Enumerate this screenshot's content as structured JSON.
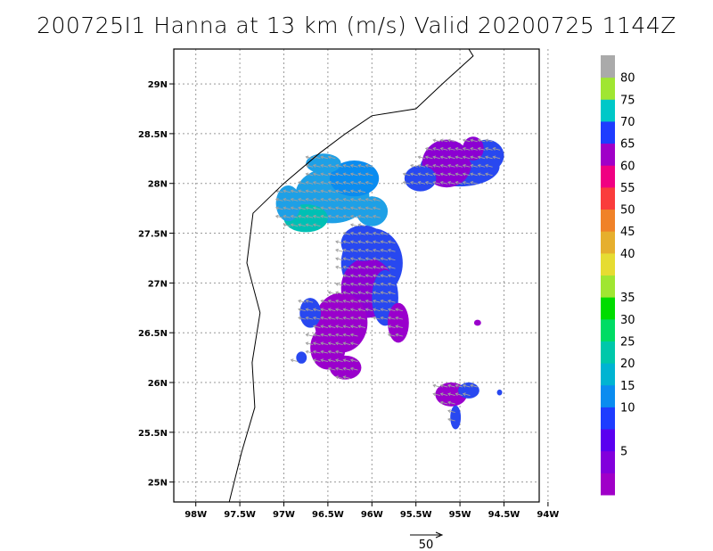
{
  "title": "200725I1 Hanna at 13 km (m/s) Valid 20200725 1144Z",
  "map": {
    "lon_range": [
      -98.25,
      -94.1
    ],
    "lat_range": [
      24.8,
      29.35
    ],
    "x_ticks": [
      {
        "lon": -98.0,
        "label": "98W"
      },
      {
        "lon": -97.5,
        "label": "97.5W"
      },
      {
        "lon": -97.0,
        "label": "97W"
      },
      {
        "lon": -96.5,
        "label": "96.5W"
      },
      {
        "lon": -96.0,
        "label": "96W"
      },
      {
        "lon": -95.5,
        "label": "95.5W"
      },
      {
        "lon": -95.0,
        "label": "95W"
      },
      {
        "lon": -94.5,
        "label": "94.5W"
      },
      {
        "lon": -94.0,
        "label": "94W"
      }
    ],
    "y_ticks": [
      {
        "lat": 29.0,
        "label": "29N"
      },
      {
        "lat": 28.5,
        "label": "28.5N"
      },
      {
        "lat": 28.0,
        "label": "28N"
      },
      {
        "lat": 27.5,
        "label": "27.5N"
      },
      {
        "lat": 27.0,
        "label": "27N"
      },
      {
        "lat": 26.5,
        "label": "26.5N"
      },
      {
        "lat": 26.0,
        "label": "26N"
      },
      {
        "lat": 25.5,
        "label": "25.5N"
      },
      {
        "lat": 25.0,
        "label": "25N"
      }
    ],
    "grid": true,
    "coastline": [
      [
        -97.62,
        24.8
      ],
      [
        -97.48,
        25.3
      ],
      [
        -97.33,
        25.75
      ],
      [
        -97.36,
        26.2
      ],
      [
        -97.27,
        26.7
      ],
      [
        -97.42,
        27.2
      ],
      [
        -97.35,
        27.7
      ],
      [
        -97.0,
        28.0
      ],
      [
        -96.6,
        28.3
      ],
      [
        -96.3,
        28.5
      ],
      [
        -96.0,
        28.68
      ],
      [
        -95.5,
        28.75
      ],
      [
        -95.2,
        29.0
      ],
      [
        -94.85,
        29.28
      ],
      [
        -94.9,
        29.35
      ]
    ]
  },
  "reference_vector": {
    "label": "50",
    "speed": 50
  },
  "colorbar": {
    "levels": [
      {
        "color": "#a000c8",
        "label": ""
      },
      {
        "color": "#8200dc",
        "label": "5"
      },
      {
        "color": "#5a00f0",
        "label": ""
      },
      {
        "color": "#1e3cff",
        "label": "10"
      },
      {
        "color": "#0a8cf0",
        "label": "15"
      },
      {
        "color": "#00b4d2",
        "label": "20"
      },
      {
        "color": "#00c8aa",
        "label": "25"
      },
      {
        "color": "#00dc64",
        "label": "30"
      },
      {
        "color": "#00dc00",
        "label": "35"
      },
      {
        "color": "#a0e632",
        "label": ""
      },
      {
        "color": "#e6dc32",
        "label": "40"
      },
      {
        "color": "#e6af2d",
        "label": "45"
      },
      {
        "color": "#f08228",
        "label": "50"
      },
      {
        "color": "#fa3c3c",
        "label": "55"
      },
      {
        "color": "#f00082",
        "label": "60"
      },
      {
        "color": "#a000c8",
        "label": "65"
      },
      {
        "color": "#1e3cff",
        "label": "70"
      },
      {
        "color": "#00c8c8",
        "label": "75"
      },
      {
        "color": "#a0e632",
        "label": "80"
      },
      {
        "color": "#aaaaaa",
        "label": ""
      }
    ]
  },
  "wind_regions": [
    {
      "lon": -96.45,
      "lat": 27.88,
      "rx": 0.42,
      "ry": 0.28,
      "color": "#1ea0e6"
    },
    {
      "lon": -96.75,
      "lat": 27.65,
      "rx": 0.25,
      "ry": 0.14,
      "color": "#00c0b4"
    },
    {
      "lon": -96.2,
      "lat": 28.05,
      "rx": 0.28,
      "ry": 0.18,
      "color": "#0a8cf0"
    },
    {
      "lon": -96.55,
      "lat": 28.2,
      "rx": 0.2,
      "ry": 0.1,
      "color": "#1ea0e6"
    },
    {
      "lon": -96.0,
      "lat": 27.72,
      "rx": 0.18,
      "ry": 0.15,
      "color": "#1ea0e6"
    },
    {
      "lon": -96.95,
      "lat": 27.8,
      "rx": 0.14,
      "ry": 0.18,
      "color": "#1ea0e6"
    },
    {
      "lon": -95.0,
      "lat": 28.17,
      "rx": 0.45,
      "ry": 0.2,
      "color": "#2848f0"
    },
    {
      "lon": -95.15,
      "lat": 28.2,
      "rx": 0.28,
      "ry": 0.24,
      "color": "#8c00d2"
    },
    {
      "lon": -94.7,
      "lat": 28.28,
      "rx": 0.2,
      "ry": 0.16,
      "color": "#2848f0"
    },
    {
      "lon": -95.45,
      "lat": 28.05,
      "rx": 0.18,
      "ry": 0.13,
      "color": "#2848f0"
    },
    {
      "lon": -94.85,
      "lat": 28.35,
      "rx": 0.12,
      "ry": 0.12,
      "color": "#8c00d2"
    },
    {
      "lon": -96.0,
      "lat": 27.2,
      "rx": 0.35,
      "ry": 0.35,
      "color": "#2848f0"
    },
    {
      "lon": -96.05,
      "lat": 26.95,
      "rx": 0.3,
      "ry": 0.3,
      "color": "#8c00d2"
    },
    {
      "lon": -95.85,
      "lat": 26.85,
      "rx": 0.15,
      "ry": 0.28,
      "color": "#2848f0"
    },
    {
      "lon": -96.1,
      "lat": 27.4,
      "rx": 0.25,
      "ry": 0.18,
      "color": "#2848f0"
    },
    {
      "lon": -96.35,
      "lat": 26.6,
      "rx": 0.3,
      "ry": 0.3,
      "color": "#9a00cc"
    },
    {
      "lon": -96.5,
      "lat": 26.35,
      "rx": 0.2,
      "ry": 0.22,
      "color": "#9a00cc"
    },
    {
      "lon": -96.7,
      "lat": 26.7,
      "rx": 0.12,
      "ry": 0.15,
      "color": "#2848f0"
    },
    {
      "lon": -96.3,
      "lat": 26.15,
      "rx": 0.18,
      "ry": 0.12,
      "color": "#9a00cc"
    },
    {
      "lon": -95.7,
      "lat": 26.6,
      "rx": 0.12,
      "ry": 0.2,
      "color": "#9a00cc"
    },
    {
      "lon": -95.1,
      "lat": 25.88,
      "rx": 0.18,
      "ry": 0.12,
      "color": "#9a00cc"
    },
    {
      "lon": -94.9,
      "lat": 25.92,
      "rx": 0.12,
      "ry": 0.08,
      "color": "#2848f0"
    },
    {
      "lon": -95.05,
      "lat": 25.65,
      "rx": 0.06,
      "ry": 0.12,
      "color": "#2848f0"
    },
    {
      "lon": -94.8,
      "lat": 26.6,
      "rx": 0.04,
      "ry": 0.03,
      "color": "#9a00cc"
    },
    {
      "lon": -94.55,
      "lat": 25.9,
      "rx": 0.03,
      "ry": 0.03,
      "color": "#2848f0"
    },
    {
      "lon": -96.8,
      "lat": 26.25,
      "rx": 0.06,
      "ry": 0.06,
      "color": "#2848f0"
    }
  ],
  "wind_vectors": {
    "u": -1.0,
    "v": 0.25,
    "color": "#a0a0a0"
  }
}
